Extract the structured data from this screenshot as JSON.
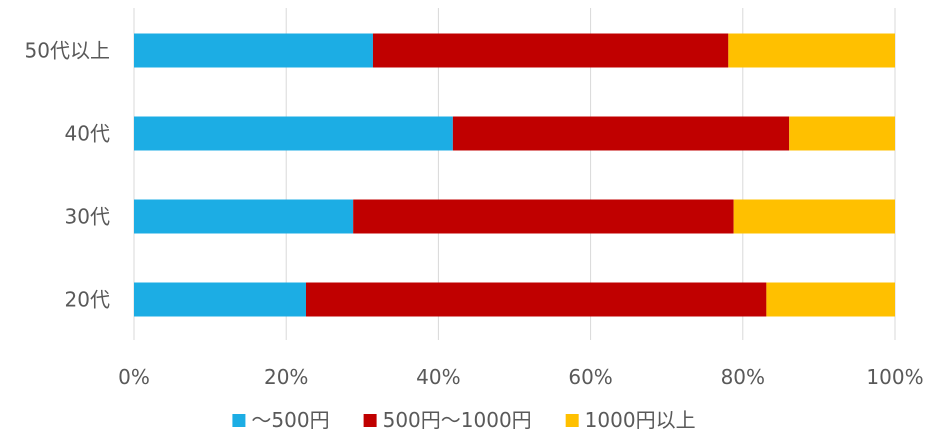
{
  "chart_data": {
    "type": "bar",
    "orientation": "horizontal",
    "stacked": "percent",
    "categories": [
      "20代",
      "30代",
      "40代",
      "50代以上"
    ],
    "series": [
      {
        "name": "～500円",
        "color": "#1CADE4",
        "values": [
          22.6,
          28.8,
          41.9,
          31.4
        ]
      },
      {
        "name": "500円～1000円",
        "color": "#C00000",
        "values": [
          60.5,
          50.0,
          44.2,
          46.7
        ]
      },
      {
        "name": "1000円以上",
        "color": "#FFC000",
        "values": [
          16.9,
          21.2,
          13.9,
          21.9
        ]
      }
    ],
    "x_ticks": [
      "0%",
      "20%",
      "40%",
      "60%",
      "80%",
      "100%"
    ],
    "xlim": [
      0,
      100
    ],
    "grid": true,
    "legend_position": "bottom",
    "title": "",
    "xlabel": "",
    "ylabel": ""
  }
}
